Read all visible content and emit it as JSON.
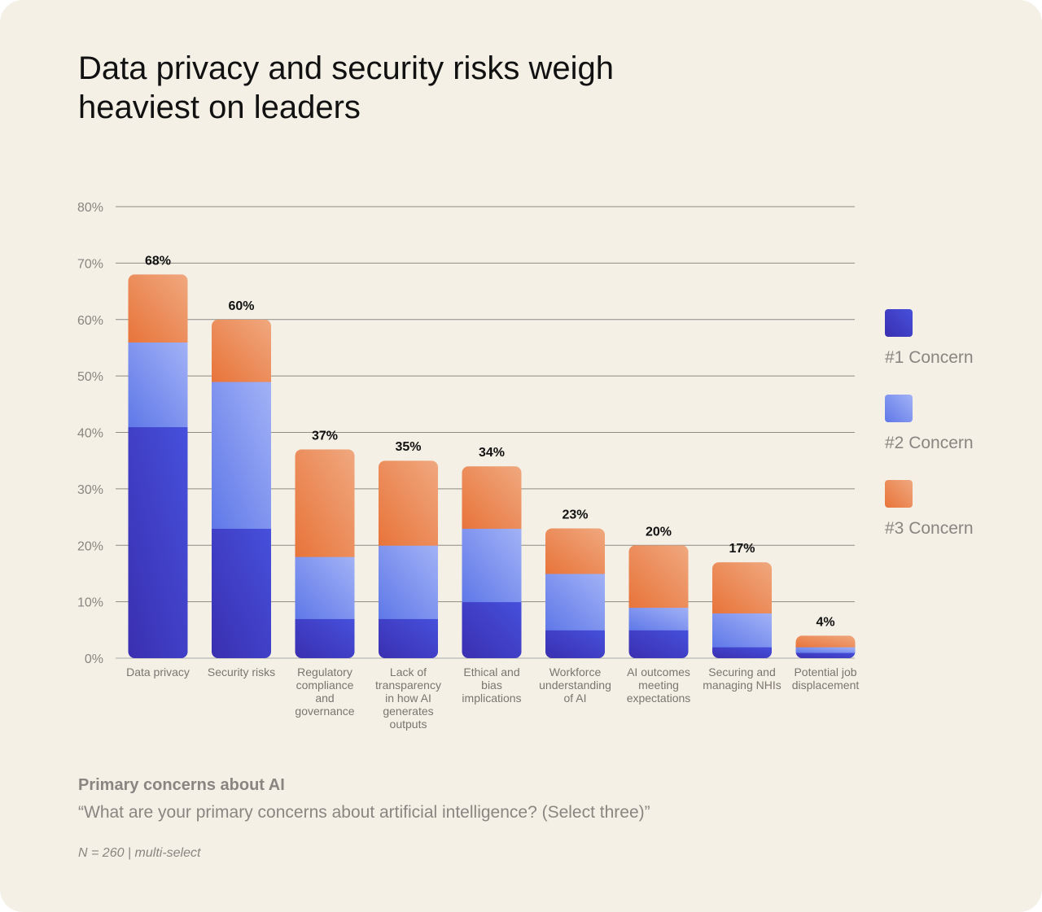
{
  "title": "Data privacy and security risks weigh heaviest on leaders",
  "footer": {
    "subtitle": "Primary concerns about AI",
    "question": "“What are your primary concerns about artificial intelligence? (Select three)”",
    "note": "N = 260 | multi-select"
  },
  "chart_data": {
    "type": "bar",
    "stacked": true,
    "title": "Data privacy and security risks weigh heaviest on leaders",
    "categories": [
      [
        "Data privacy"
      ],
      [
        "Security risks"
      ],
      [
        "Regulatory",
        "compliance",
        "and",
        "governance"
      ],
      [
        "Lack of",
        "transparency",
        "in how AI",
        "generates",
        "outputs"
      ],
      [
        "Ethical and",
        "bias",
        "implications"
      ],
      [
        "Workforce",
        "understanding",
        "of AI"
      ],
      [
        "AI outcomes",
        "meeting",
        "expectations"
      ],
      [
        "Securing and",
        "managing NHIs"
      ],
      [
        "Potential job",
        "displacement"
      ]
    ],
    "totals_labels": [
      "68%",
      "60%",
      "37%",
      "35%",
      "34%",
      "23%",
      "20%",
      "17%",
      "4%"
    ],
    "totals": [
      68,
      60,
      37,
      35,
      34,
      23,
      20,
      17,
      4
    ],
    "series": [
      {
        "name": "#1 Concern",
        "values": [
          41,
          23,
          7,
          7,
          10,
          5,
          5,
          2,
          1
        ],
        "color": "#3a2fb0",
        "color_light": "#4650dc"
      },
      {
        "name": "#2 Concern",
        "values": [
          15,
          26,
          11,
          13,
          13,
          10,
          4,
          6,
          1
        ],
        "color": "#5f78e8",
        "color_light": "#a2b2f6"
      },
      {
        "name": "#3 Concern",
        "values": [
          12,
          11,
          19,
          15,
          11,
          8,
          11,
          9,
          2
        ],
        "color": "#e8743a",
        "color_light": "#f0a87f"
      }
    ],
    "yticks": [
      "0%",
      "10%",
      "20%",
      "30%",
      "40%",
      "50%",
      "60%",
      "70%",
      "80%"
    ],
    "ylim": [
      0,
      80
    ],
    "grid": true,
    "legend": "right"
  }
}
